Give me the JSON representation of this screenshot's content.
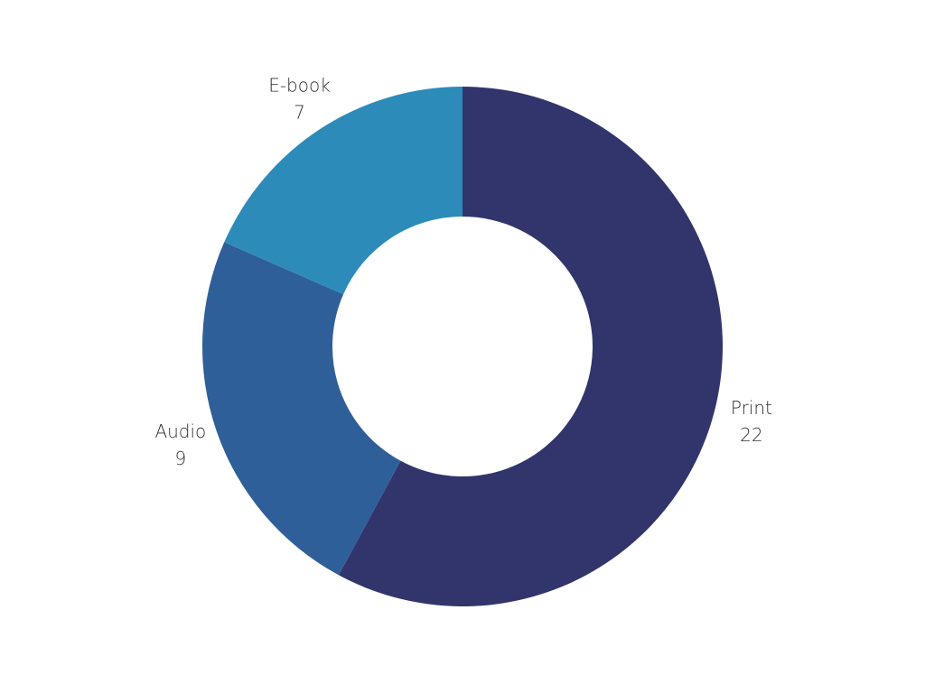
{
  "chart_data": {
    "type": "pie",
    "variant": "donut",
    "title": "",
    "categories": [
      "Print",
      "Audio",
      "E-book"
    ],
    "values": [
      22,
      9,
      7
    ],
    "colors": [
      "#31356c",
      "#2f5f98",
      "#2d8bba"
    ],
    "legend": "none"
  }
}
